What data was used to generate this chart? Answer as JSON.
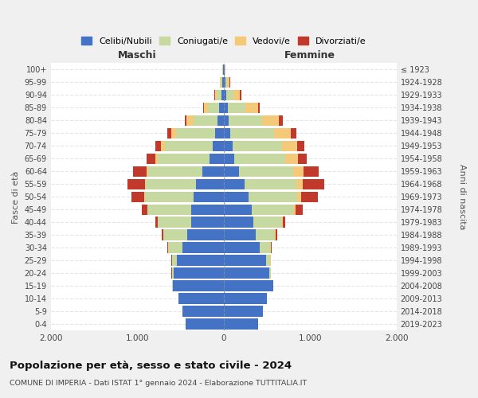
{
  "age_groups": [
    "0-4",
    "5-9",
    "10-14",
    "15-19",
    "20-24",
    "25-29",
    "30-34",
    "35-39",
    "40-44",
    "45-49",
    "50-54",
    "55-59",
    "60-64",
    "65-69",
    "70-74",
    "75-79",
    "80-84",
    "85-89",
    "90-94",
    "95-99",
    "100+"
  ],
  "birth_years": [
    "2019-2023",
    "2014-2018",
    "2009-2013",
    "2004-2008",
    "1999-2003",
    "1994-1998",
    "1989-1993",
    "1984-1988",
    "1979-1983",
    "1974-1978",
    "1969-1973",
    "1964-1968",
    "1959-1963",
    "1954-1958",
    "1949-1953",
    "1944-1948",
    "1939-1943",
    "1934-1938",
    "1929-1933",
    "1924-1928",
    "≤ 1923"
  ],
  "males": {
    "celibe": [
      440,
      480,
      520,
      590,
      580,
      540,
      480,
      420,
      380,
      380,
      350,
      320,
      250,
      160,
      130,
      100,
      70,
      50,
      30,
      20,
      10
    ],
    "coniugato": [
      0,
      1,
      2,
      5,
      20,
      60,
      160,
      280,
      380,
      500,
      560,
      580,
      620,
      600,
      550,
      450,
      280,
      130,
      50,
      15,
      5
    ],
    "vedovo": [
      0,
      0,
      0,
      0,
      0,
      0,
      0,
      1,
      2,
      5,
      8,
      10,
      20,
      30,
      50,
      60,
      80,
      50,
      20,
      8,
      2
    ],
    "divorziato": [
      0,
      0,
      0,
      0,
      2,
      5,
      15,
      20,
      30,
      60,
      150,
      200,
      160,
      100,
      60,
      40,
      20,
      10,
      5,
      2,
      0
    ]
  },
  "females": {
    "nubile": [
      400,
      450,
      500,
      570,
      530,
      490,
      420,
      370,
      340,
      320,
      290,
      240,
      180,
      120,
      100,
      80,
      60,
      50,
      30,
      20,
      10
    ],
    "coniugata": [
      0,
      0,
      1,
      3,
      15,
      50,
      120,
      220,
      330,
      480,
      560,
      600,
      620,
      590,
      570,
      500,
      380,
      200,
      80,
      20,
      5
    ],
    "vedova": [
      0,
      0,
      0,
      0,
      0,
      1,
      3,
      8,
      15,
      30,
      50,
      70,
      120,
      150,
      180,
      200,
      200,
      150,
      80,
      30,
      3
    ],
    "divorziata": [
      0,
      0,
      0,
      0,
      1,
      3,
      10,
      20,
      30,
      80,
      190,
      250,
      180,
      100,
      80,
      60,
      40,
      20,
      10,
      2,
      0
    ]
  },
  "colors": {
    "celibe": "#4472C4",
    "coniugato": "#C5D9A0",
    "vedovo": "#F5C97A",
    "divorziato": "#C0392B"
  },
  "legend_labels": [
    "Celibi/Nubili",
    "Coniugati/e",
    "Vedovi/e",
    "Divorziati/e"
  ],
  "xlim": 2000,
  "title": "Popolazione per età, sesso e stato civile - 2024",
  "subtitle": "COMUNE DI IMPERIA - Dati ISTAT 1° gennaio 2024 - Elaborazione TUTTITALIA.IT",
  "ylabel": "Fasce di età",
  "ylabel_right": "Anni di nascita",
  "xlabel_maschi": "Maschi",
  "xlabel_femmine": "Femmine",
  "bg_color": "#f0f0f0",
  "plot_bg": "#ffffff"
}
